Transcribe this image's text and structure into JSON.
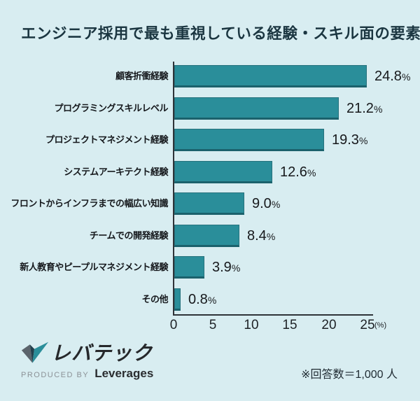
{
  "title": "エンジニア採用で最も重視している経験・スキル面の要素",
  "chart_data": {
    "type": "bar",
    "orientation": "horizontal",
    "title": "エンジニア採用で最も重視している経験・スキル面の要素",
    "categories": [
      "顧客折衝経験",
      "プログラミングスキルレベル",
      "プロジェクトマネジメント経験",
      "システムアーキテクト経験",
      "フロントからインフラまでの幅広い知識",
      "チームでの開発経験",
      "新人教育やピープルマネジメント経験",
      "その他"
    ],
    "values": [
      24.8,
      21.2,
      19.3,
      12.6,
      9.0,
      8.4,
      3.9,
      0.8
    ],
    "value_labels": [
      "24.8",
      "21.2",
      "19.3",
      "12.6",
      "9.0",
      "8.4",
      "3.9",
      "0.8"
    ],
    "unit": "%",
    "xlabel": "(%)",
    "xlim": [
      0,
      25
    ],
    "xticks": [
      "0",
      "5",
      "10",
      "15",
      "20",
      "25"
    ],
    "grid": false,
    "legend_position": "none",
    "bar_color": "#2A8E9A",
    "background_color": "#D8EDF1"
  },
  "footer": {
    "logo_text": "レバテック",
    "produced_by": "PRODUCED BY",
    "company": "Leverages",
    "note": "※回答数＝1,000 人"
  }
}
